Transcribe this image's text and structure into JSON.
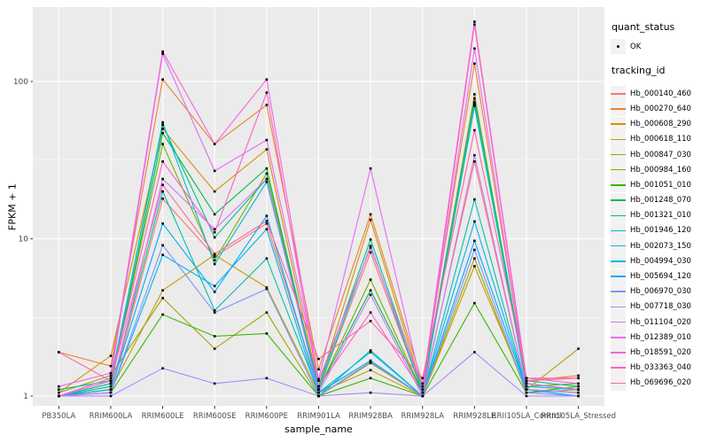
{
  "figure": {
    "y_axis": {
      "title": "FPKM + 1",
      "breaks": [
        1,
        10,
        100
      ],
      "labels": [
        "1",
        "10",
        "100"
      ],
      "minor_breaks": [
        3.1623,
        31.623
      ]
    },
    "x_axis": {
      "title": "sample_name"
    },
    "legend": {
      "quant_status": {
        "title": "quant_status",
        "items": [
          {
            "label": "OK"
          }
        ]
      },
      "tracking_id": {
        "title": "tracking_id"
      }
    },
    "colors": {
      "panel_bg": "#EBEBEB",
      "grid": "#FFFFFF",
      "axis_text": "#4D4D4D",
      "tick": "#333333",
      "key_bg": "#F2F2F2",
      "point": "#000000"
    }
  },
  "chart_data": {
    "type": "line",
    "title": "",
    "xlabel": "sample_name",
    "ylabel": "FPKM + 1",
    "y_scale": "log10",
    "ylim": [
      1,
      300
    ],
    "grid": true,
    "legend_position": "right",
    "point_shape": "small-black-dot",
    "quant_status": "OK",
    "categories": [
      "PB350LA",
      "RRIM600LA",
      "RRIM600LE",
      "RRIM600SE",
      "RRIM600PE",
      "RRIM901LA",
      "RRIM928BA",
      "RRIM928LA",
      "RRIM928LE",
      "RRII105LA_Control",
      "RRII105LA_Stressed"
    ],
    "series": [
      {
        "name": "Hb_000140_460",
        "color": "#F8766D",
        "values": [
          1.0,
          1.05,
          18.0,
          7.7,
          12.5,
          1.1,
          8.2,
          1.05,
          31.0,
          1.1,
          1.05
        ]
      },
      {
        "name": "Hb_000270_640",
        "color": "#EA8331",
        "values": [
          1.9,
          1.55,
          103.0,
          40.0,
          71.0,
          1.48,
          14.3,
          1.2,
          130.0,
          1.25,
          1.35
        ]
      },
      {
        "name": "Hb_000608_290",
        "color": "#D69100",
        "values": [
          1.05,
          1.8,
          50.0,
          20.0,
          37.0,
          1.15,
          13.2,
          1.1,
          83.0,
          1.2,
          1.1
        ]
      },
      {
        "name": "Hb_000618_110",
        "color": "#BF9C00",
        "values": [
          1.0,
          1.1,
          4.7,
          7.9,
          4.9,
          1.05,
          1.46,
          1.0,
          6.7,
          1.1,
          2.0
        ]
      },
      {
        "name": "Hb_000847_030",
        "color": "#A3A500",
        "values": [
          1.05,
          1.35,
          4.2,
          2.0,
          3.4,
          1.0,
          1.62,
          1.0,
          7.5,
          1.05,
          1.1
        ]
      },
      {
        "name": "Hb_000984_160",
        "color": "#7CAE00",
        "values": [
          1.0,
          1.2,
          40.0,
          7.3,
          26.0,
          1.1,
          5.5,
          1.05,
          74.0,
          1.15,
          1.2
        ]
      },
      {
        "name": "Hb_001051_010",
        "color": "#39B600",
        "values": [
          1.0,
          1.05,
          3.3,
          2.4,
          2.5,
          1.0,
          1.3,
          1.0,
          3.9,
          1.05,
          1.15
        ]
      },
      {
        "name": "Hb_001248_070",
        "color": "#00BB4E",
        "values": [
          1.0,
          1.15,
          47.0,
          14.3,
          28.0,
          1.1,
          4.7,
          1.05,
          70.0,
          1.2,
          1.1
        ]
      },
      {
        "name": "Hb_001321_010",
        "color": "#00C087",
        "values": [
          1.1,
          1.25,
          53.0,
          10.2,
          24.0,
          1.15,
          9.9,
          1.1,
          78.0,
          1.25,
          1.15
        ]
      },
      {
        "name": "Hb_001946_120",
        "color": "#00C0B4",
        "values": [
          1.0,
          1.1,
          20.0,
          3.5,
          7.5,
          1.05,
          1.9,
          1.0,
          17.8,
          1.1,
          1.05
        ]
      },
      {
        "name": "Hb_002073_150",
        "color": "#00BDD0",
        "values": [
          1.0,
          1.2,
          55.0,
          6.9,
          23.0,
          1.1,
          9.0,
          1.05,
          72.0,
          1.15,
          1.1
        ]
      },
      {
        "name": "Hb_004994_030",
        "color": "#00B6EB",
        "values": [
          1.0,
          1.05,
          7.9,
          5.0,
          11.5,
          1.0,
          1.95,
          1.0,
          12.9,
          1.1,
          1.05
        ]
      },
      {
        "name": "Hb_005694_120",
        "color": "#00A9FF",
        "values": [
          1.0,
          1.1,
          12.5,
          4.6,
          14.0,
          1.05,
          1.68,
          1.0,
          9.7,
          1.1,
          1.0
        ]
      },
      {
        "name": "Hb_006970_030",
        "color": "#7997FF",
        "values": [
          1.0,
          1.05,
          9.1,
          3.4,
          4.8,
          1.0,
          1.65,
          1.0,
          8.5,
          1.05,
          1.0
        ]
      },
      {
        "name": "Hb_007718_030",
        "color": "#AC88FF",
        "values": [
          1.0,
          1.0,
          1.5,
          1.2,
          1.3,
          1.0,
          1.05,
          1.0,
          1.9,
          1.0,
          1.0
        ]
      },
      {
        "name": "Hb_011104_020",
        "color": "#CF78FF",
        "values": [
          1.0,
          1.05,
          24.0,
          11.5,
          24.0,
          1.05,
          4.4,
          1.0,
          34.0,
          1.1,
          1.05
        ]
      },
      {
        "name": "Hb_012389_010",
        "color": "#E76BF3",
        "values": [
          1.0,
          1.3,
          150.0,
          27.0,
          42.5,
          1.28,
          28.0,
          1.1,
          162.0,
          1.2,
          1.1
        ]
      },
      {
        "name": "Hb_018591_020",
        "color": "#F564E3",
        "values": [
          1.15,
          1.4,
          155.0,
          40.0,
          103.0,
          1.25,
          8.8,
          1.15,
          240.0,
          1.3,
          1.2
        ]
      },
      {
        "name": "Hb_033363_040",
        "color": "#FF61C7",
        "values": [
          1.0,
          1.25,
          31.0,
          11.0,
          85.0,
          1.15,
          3.4,
          1.05,
          230.0,
          1.25,
          1.3
        ]
      },
      {
        "name": "Hb_069696_020",
        "color": "#FF689E",
        "values": [
          1.9,
          1.25,
          22.0,
          8.0,
          13.0,
          1.72,
          3.0,
          1.3,
          49.0,
          1.3,
          1.3
        ]
      }
    ]
  }
}
